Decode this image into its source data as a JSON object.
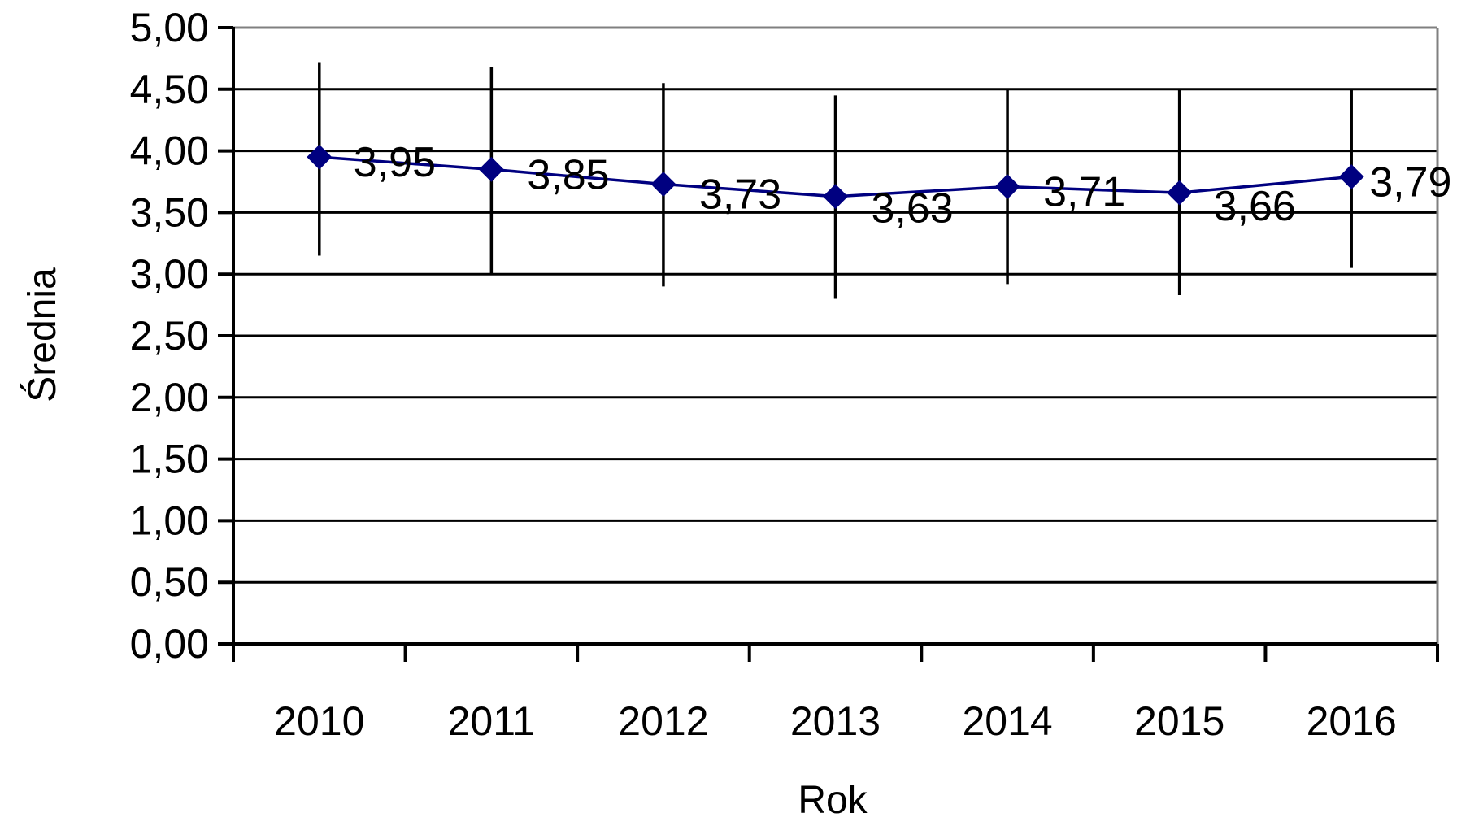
{
  "chart_data": {
    "type": "line",
    "categories": [
      "2010",
      "2011",
      "2012",
      "2013",
      "2014",
      "2015",
      "2016"
    ],
    "series": [
      {
        "values": [
          3.95,
          3.85,
          3.73,
          3.63,
          3.71,
          3.66,
          3.79
        ],
        "labels": [
          "3,95",
          "3,85",
          "3,73",
          "3,63",
          "3,71",
          "3,66",
          "3,79"
        ],
        "error_low": [
          3.15,
          3.0,
          2.9,
          2.8,
          2.92,
          2.83,
          3.05
        ],
        "error_high": [
          4.72,
          4.68,
          4.55,
          4.45,
          4.5,
          4.5,
          4.5
        ],
        "color": "#000080",
        "marker": "diamond"
      }
    ],
    "xlabel": "Rok",
    "ylabel": "Średnia",
    "ylim": [
      0,
      5
    ],
    "yticks": [
      "0,00",
      "0,50",
      "1,00",
      "1,50",
      "2,00",
      "2,50",
      "3,00",
      "3,50",
      "4,00",
      "4,50",
      "5,00"
    ],
    "ytick_values": [
      0,
      0.5,
      1,
      1.5,
      2,
      2.5,
      3,
      3.5,
      4,
      4.5,
      5
    ],
    "grid": true,
    "colors": {
      "line": "#000080",
      "gridline": "#000000",
      "frame": "#808080",
      "error_bar": "#000000"
    }
  }
}
